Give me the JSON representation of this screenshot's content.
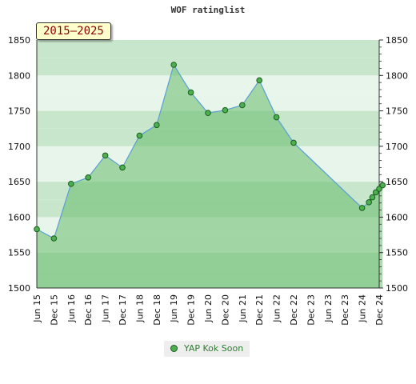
{
  "chart_data": {
    "type": "area",
    "title": "WOF ratinglist",
    "period_label": "2015–2025",
    "ylim": [
      1500,
      1850
    ],
    "y_ticks": [
      1500,
      1550,
      1600,
      1650,
      1700,
      1750,
      1800,
      1850
    ],
    "y_axis_side": "both",
    "x_ticks": [
      "Jun 15",
      "Dec 15",
      "Jun 16",
      "Dec 16",
      "Jun 17",
      "Dec 17",
      "Jun 18",
      "Dec 18",
      "Jun 19",
      "Dec 19",
      "Jun 20",
      "Dec 20",
      "Jun 21",
      "Dec 21",
      "Jun 22",
      "Dec 22",
      "Dec 23",
      "Jun 23",
      "Dec 23",
      "Jun 24",
      "Dec 24"
    ],
    "series": [
      {
        "name": "YAP Kok Soon",
        "points": [
          {
            "x": 0,
            "y": 1583
          },
          {
            "x": 1,
            "y": 1570
          },
          {
            "x": 2,
            "y": 1647
          },
          {
            "x": 3,
            "y": 1656
          },
          {
            "x": 4,
            "y": 1687
          },
          {
            "x": 5,
            "y": 1670
          },
          {
            "x": 6,
            "y": 1715
          },
          {
            "x": 7,
            "y": 1730
          },
          {
            "x": 8,
            "y": 1815
          },
          {
            "x": 9,
            "y": 1776
          },
          {
            "x": 10,
            "y": 1747
          },
          {
            "x": 11,
            "y": 1751
          },
          {
            "x": 12,
            "y": 1758
          },
          {
            "x": 13,
            "y": 1793
          },
          {
            "x": 14,
            "y": 1741
          },
          {
            "x": 15,
            "y": 1705
          },
          {
            "x": 19,
            "y": 1613
          },
          {
            "x": 19.4,
            "y": 1621
          },
          {
            "x": 19.6,
            "y": 1628
          },
          {
            "x": 19.8,
            "y": 1635
          },
          {
            "x": 20.0,
            "y": 1640
          },
          {
            "x": 20.2,
            "y": 1645
          }
        ]
      }
    ],
    "legend": "bottom-center",
    "colors": {
      "line": "#5a9fd4",
      "marker_fill": "#4caf50",
      "marker_edge": "#1b5e20",
      "band_light": "#e8f5ea",
      "band_mid": "#c8e6cc",
      "band_dark": "#a5d6a7",
      "fill": "#66bb6a"
    }
  }
}
